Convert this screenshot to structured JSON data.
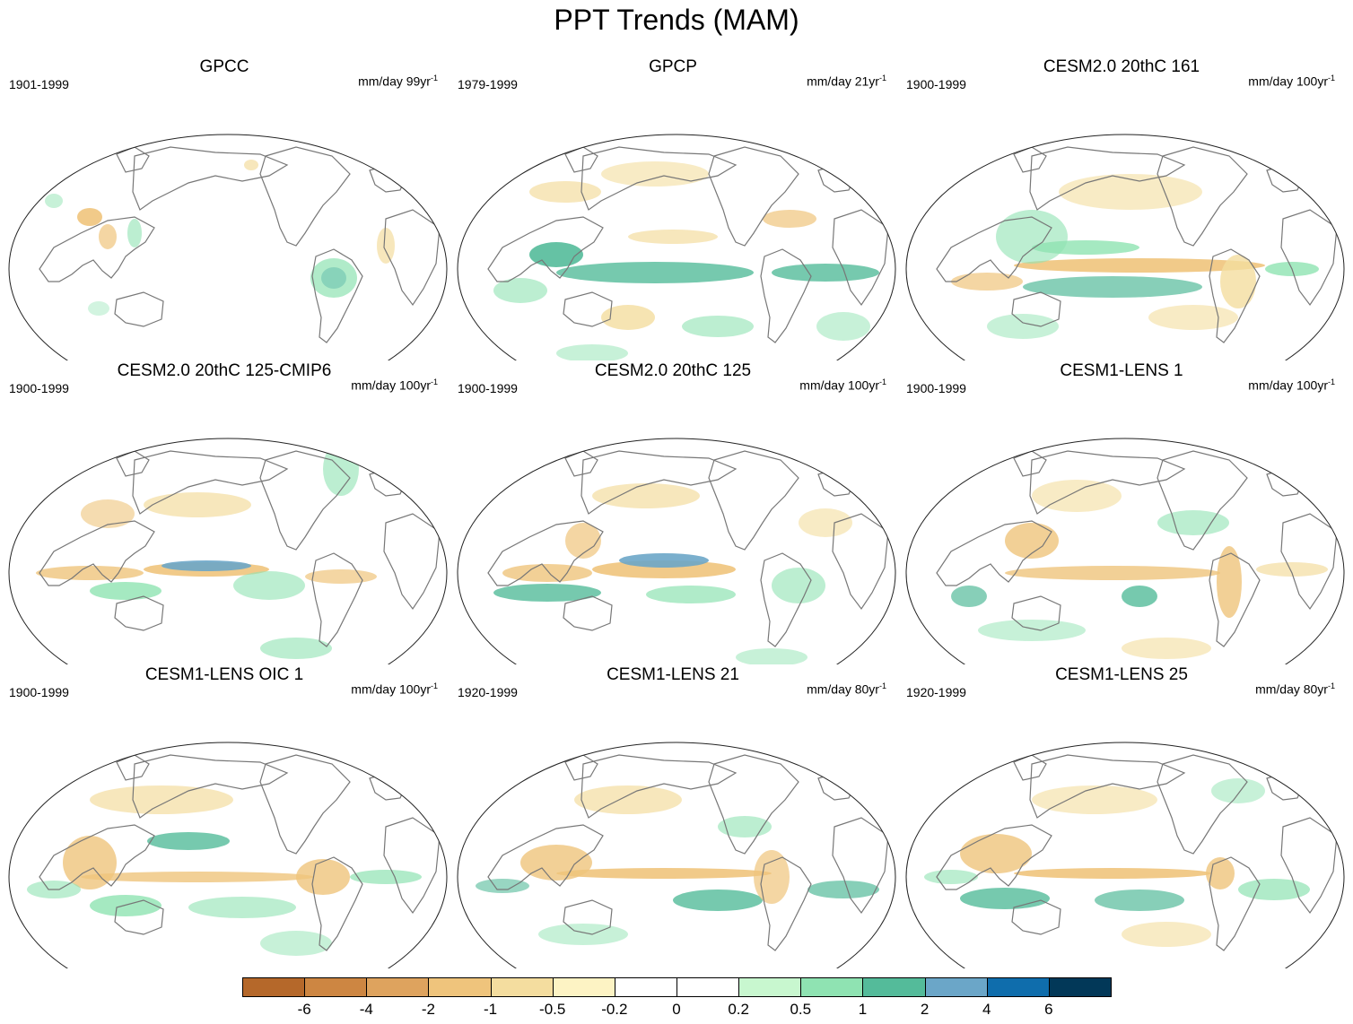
{
  "title": "PPT Trends (MAM)",
  "panels": [
    {
      "name": "GPCC",
      "period": "1901-1999",
      "units": "mm/day 99yr",
      "units_exp": "-1",
      "style": "obs_gpcc"
    },
    {
      "name": "GPCP",
      "period": "1979-1999",
      "units": "mm/day 21yr",
      "units_exp": "-1",
      "style": "obs_gpcp"
    },
    {
      "name": "CESM2.0 20thC 161",
      "period": "1900-1999",
      "units": "mm/day 100yr",
      "units_exp": "-1",
      "style": "model_a"
    },
    {
      "name": "CESM2.0 20thC 125-CMIP6",
      "period": "1900-1999",
      "units": "mm/day 100yr",
      "units_exp": "-1",
      "style": "model_b"
    },
    {
      "name": "CESM2.0 20thC 125",
      "period": "1900-1999",
      "units": "mm/day 100yr",
      "units_exp": "-1",
      "style": "model_c"
    },
    {
      "name": "CESM1-LENS 1",
      "period": "1900-1999",
      "units": "mm/day 100yr",
      "units_exp": "-1",
      "style": "model_d"
    },
    {
      "name": "CESM1-LENS OIC 1",
      "period": "1900-1999",
      "units": "mm/day 100yr",
      "units_exp": "-1",
      "style": "model_e"
    },
    {
      "name": "CESM1-LENS 21",
      "period": "1920-1999",
      "units": "mm/day 80yr",
      "units_exp": "-1",
      "style": "model_f"
    },
    {
      "name": "CESM1-LENS 25",
      "period": "1920-1999",
      "units": "mm/day 80yr",
      "units_exp": "-1",
      "style": "model_g"
    }
  ],
  "colorbar": {
    "labels": [
      "-6",
      "-4",
      "-2",
      "-1",
      "-0.5",
      "-0.2",
      "0",
      "0.2",
      "0.5",
      "1",
      "2",
      "4",
      "6"
    ],
    "colors": [
      "#b5682a",
      "#cd8642",
      "#dea35e",
      "#efc47c",
      "#f4dd9f",
      "#fdf3c4",
      "#ffffff",
      "#ffffff",
      "#c8f7cf",
      "#8fe3b2",
      "#54bb9a",
      "#6ba6c8",
      "#0f6dac",
      "#023858"
    ]
  }
}
